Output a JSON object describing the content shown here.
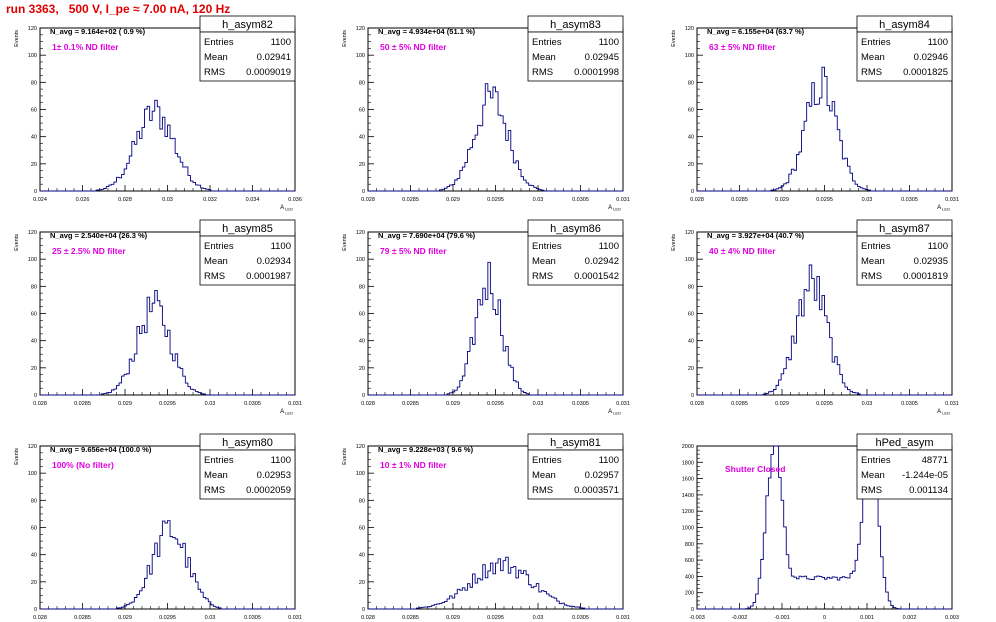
{
  "run_title": "run 3363,   500 V, I_pe ≈ 7.00 nA, 120 Hz",
  "chart_data": [
    {
      "type": "histogram",
      "stats_title": "h_asym82",
      "stats": [
        [
          "Entries",
          "1100"
        ],
        [
          "Mean",
          "0.02941"
        ],
        [
          "RMS",
          "0.0009019"
        ]
      ],
      "navg_label": "N_avg = 9.164e+02 ( 0.9 %)",
      "filter_label": "1± 0.1% ND filter",
      "ylabel": "Events",
      "xlabel": "A_{LED}",
      "xlim": [
        0.024,
        0.036
      ],
      "ylim": [
        0,
        120
      ],
      "xticks": [
        0.024,
        0.026,
        0.028,
        0.03,
        0.032,
        0.034,
        0.036
      ],
      "xtick_labels": [
        "0.024",
        "0.026",
        "0.028",
        "0.03",
        "0.032",
        "0.034",
        "0.036"
      ],
      "yticks": [
        0,
        20,
        40,
        60,
        80,
        100,
        120
      ],
      "mean": 0.02941,
      "rms": 0.0009019,
      "peak": 58,
      "smooth": 5
    },
    {
      "type": "histogram",
      "stats_title": "h_asym83",
      "stats": [
        [
          "Entries",
          "1100"
        ],
        [
          "Mean",
          "0.02945"
        ],
        [
          "RMS",
          "0.0001998"
        ]
      ],
      "navg_label": "N_avg = 4.934e+04 (51.1 %)",
      "filter_label": "50 ± 5% ND filter",
      "ylabel": "Events",
      "xlabel": "A_{LED}",
      "xlim": [
        0.028,
        0.031
      ],
      "ylim": [
        0,
        120
      ],
      "xticks": [
        0.028,
        0.0285,
        0.029,
        0.0295,
        0.03,
        0.0305,
        0.031
      ],
      "xtick_labels": [
        "0.028",
        "0.0285",
        "0.029",
        "0.0295",
        "0.03",
        "0.0305",
        "0.031"
      ],
      "yticks": [
        0,
        20,
        40,
        60,
        80,
        100,
        120
      ],
      "mean": 0.02945,
      "rms": 0.0001998,
      "peak": 68,
      "smooth": 3
    },
    {
      "type": "histogram",
      "stats_title": "h_asym84",
      "stats": [
        [
          "Entries",
          "1100"
        ],
        [
          "Mean",
          "0.02946"
        ],
        [
          "RMS",
          "0.0001825"
        ]
      ],
      "navg_label": "N_avg = 6.155e+04 (63.7 %)",
      "filter_label": "63 ± 5% ND filter",
      "ylabel": "Events",
      "xlabel": "A_{LED}",
      "xlim": [
        0.028,
        0.031
      ],
      "ylim": [
        0,
        120
      ],
      "xticks": [
        0.028,
        0.0285,
        0.029,
        0.0295,
        0.03,
        0.0305,
        0.031
      ],
      "xtick_labels": [
        "0.028",
        "0.0285",
        "0.029",
        "0.0295",
        "0.03",
        "0.0305",
        "0.031"
      ],
      "yticks": [
        0,
        20,
        40,
        60,
        80,
        100,
        120
      ],
      "mean": 0.02946,
      "rms": 0.0001825,
      "peak": 78,
      "smooth": 2
    },
    {
      "type": "histogram",
      "stats_title": "h_asym85",
      "stats": [
        [
          "Entries",
          "1100"
        ],
        [
          "Mean",
          "0.02934"
        ],
        [
          "RMS",
          "0.0001987"
        ]
      ],
      "navg_label": "N_avg = 2.540e+04 (26.3 %)",
      "filter_label": "25 ± 2.5% ND filter",
      "ylabel": "Events",
      "xlabel": "A_{LED}",
      "xlim": [
        0.028,
        0.031
      ],
      "ylim": [
        0,
        120
      ],
      "xticks": [
        0.028,
        0.0285,
        0.029,
        0.0295,
        0.03,
        0.0305,
        0.031
      ],
      "xtick_labels": [
        "0.028",
        "0.0285",
        "0.029",
        "0.0295",
        "0.03",
        "0.0305",
        "0.031"
      ],
      "yticks": [
        0,
        20,
        40,
        60,
        80,
        100,
        120
      ],
      "mean": 0.02934,
      "rms": 0.0001987,
      "peak": 64,
      "smooth": 3
    },
    {
      "type": "histogram",
      "stats_title": "h_asym86",
      "stats": [
        [
          "Entries",
          "1100"
        ],
        [
          "Mean",
          "0.02942"
        ],
        [
          "RMS",
          "0.0001542"
        ]
      ],
      "navg_label": "N_avg = 7.690e+04 (79.6 %)",
      "filter_label": "79 ± 5% ND filter",
      "ylabel": "Events",
      "xlabel": "A_{LED}",
      "xlim": [
        0.028,
        0.031
      ],
      "ylim": [
        0,
        120
      ],
      "xticks": [
        0.028,
        0.0285,
        0.029,
        0.0295,
        0.03,
        0.0305,
        0.031
      ],
      "xtick_labels": [
        "0.028",
        "0.0285",
        "0.029",
        "0.0295",
        "0.03",
        "0.0305",
        "0.031"
      ],
      "yticks": [
        0,
        20,
        40,
        60,
        80,
        100,
        120
      ],
      "mean": 0.02942,
      "rms": 0.0001542,
      "peak": 85,
      "smooth": 2
    },
    {
      "type": "histogram",
      "stats_title": "h_asym87",
      "stats": [
        [
          "Entries",
          "1100"
        ],
        [
          "Mean",
          "0.02935"
        ],
        [
          "RMS",
          "0.0001819"
        ]
      ],
      "navg_label": "N_avg = 3.927e+04 (40.7 %)",
      "filter_label": "40 ± 4% ND filter",
      "ylabel": "Events",
      "xlabel": "A_{LED}",
      "xlim": [
        0.028,
        0.031
      ],
      "ylim": [
        0,
        120
      ],
      "xticks": [
        0.028,
        0.0285,
        0.029,
        0.0295,
        0.03,
        0.0305,
        0.031
      ],
      "xtick_labels": [
        "0.028",
        "0.0285",
        "0.029",
        "0.0295",
        "0.03",
        "0.0305",
        "0.031"
      ],
      "yticks": [
        0,
        20,
        40,
        60,
        80,
        100,
        120
      ],
      "mean": 0.02935,
      "rms": 0.0001819,
      "peak": 82,
      "smooth": 2
    },
    {
      "type": "histogram",
      "stats_title": "h_asym80",
      "stats": [
        [
          "Entries",
          "1100"
        ],
        [
          "Mean",
          "0.02953"
        ],
        [
          "RMS",
          "0.0002059"
        ]
      ],
      "navg_label": "N_avg = 9.656e+04 (100.0 %)",
      "filter_label": "100% (No filter)",
      "ylabel": "Events",
      "xlabel": "A_{LED}",
      "xlim": [
        0.028,
        0.031
      ],
      "ylim": [
        0,
        120
      ],
      "xticks": [
        0.028,
        0.0285,
        0.029,
        0.0295,
        0.03,
        0.0305,
        0.031
      ],
      "xtick_labels": [
        "0.028",
        "0.0285",
        "0.029",
        "0.0295",
        "0.03",
        "0.0305",
        "0.031"
      ],
      "yticks": [
        0,
        20,
        40,
        60,
        80,
        100,
        120
      ],
      "mean": 0.02953,
      "rms": 0.0002059,
      "peak": 58,
      "smooth": 4
    },
    {
      "type": "histogram",
      "stats_title": "h_asym81",
      "stats": [
        [
          "Entries",
          "1100"
        ],
        [
          "Mean",
          "0.02957"
        ],
        [
          "RMS",
          "0.0003571"
        ]
      ],
      "navg_label": "N_avg = 9.228e+03 ( 9.6 %)",
      "filter_label": "10 ± 1% ND filter",
      "ylabel": "Events",
      "xlabel": "A_{LED}",
      "xlim": [
        0.028,
        0.031
      ],
      "ylim": [
        0,
        120
      ],
      "xticks": [
        0.028,
        0.0285,
        0.029,
        0.0295,
        0.03,
        0.0305,
        0.031
      ],
      "xtick_labels": [
        "0.028",
        "0.0285",
        "0.029",
        "0.0295",
        "0.03",
        "0.0305",
        "0.031"
      ],
      "yticks": [
        0,
        20,
        40,
        60,
        80,
        100,
        120
      ],
      "mean": 0.02957,
      "rms": 0.0003571,
      "peak": 33,
      "smooth": 6
    },
    {
      "type": "histogram",
      "stats_title": "hPed_asym",
      "stats": [
        [
          "Entries",
          "48771"
        ],
        [
          "Mean",
          "-1.244e-05"
        ],
        [
          "RMS",
          "0.001134"
        ]
      ],
      "navg_label": "",
      "filter_label": "Shutter Closed",
      "ylabel": "",
      "xlabel": "",
      "xlim": [
        -0.003,
        0.003
      ],
      "ylim": [
        0,
        2000
      ],
      "xticks": [
        -0.003,
        -0.002,
        -0.001,
        0,
        0.001,
        0.002,
        0.003
      ],
      "xtick_labels": [
        "-0.003",
        "-0.002",
        "-0.001",
        "0",
        "0.001",
        "0.002",
        "0.003"
      ],
      "yticks": [
        0,
        200,
        400,
        600,
        800,
        1000,
        1200,
        1400,
        1600,
        1800,
        2000
      ],
      "bimodal": {
        "centers": [
          -0.0012,
          0.0011
        ],
        "sigma": 0.00018,
        "peaks": [
          1900,
          1800
        ],
        "plateau": 380
      },
      "smooth": 2
    }
  ]
}
